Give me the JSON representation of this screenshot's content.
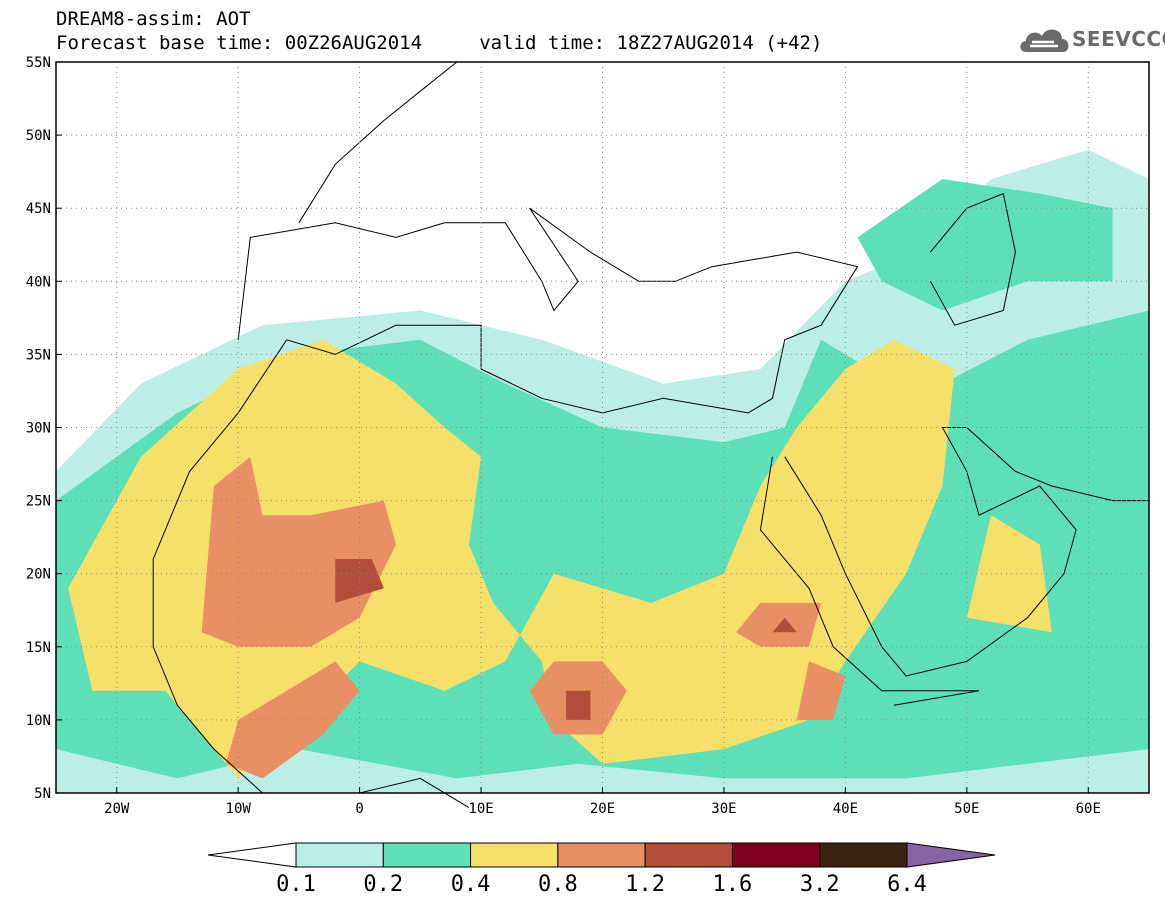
{
  "header": {
    "line1": "DREAM8-assim: AOT",
    "line2": "Forecast base time: 00Z26AUG2014     valid time: 18Z27AUG2014 (+42)",
    "logo_text": "SEEVCCC"
  },
  "map": {
    "lon_range": [
      -25,
      65
    ],
    "lat_range": [
      5,
      55
    ],
    "lat_labels": [
      "5N",
      "10N",
      "15N",
      "20N",
      "25N",
      "30N",
      "35N",
      "40N",
      "45N",
      "50N",
      "55N"
    ],
    "lon_labels": [
      "20W",
      "10W",
      "0",
      "10E",
      "20E",
      "30E",
      "40E",
      "50E",
      "60E"
    ]
  },
  "legend": {
    "colors": [
      "#ffffff",
      "#bdeee6",
      "#5de0b8",
      "#f6e06a",
      "#e89064",
      "#b24d3c",
      "#800020",
      "#3d2412",
      "#8a62a6"
    ],
    "labels": [
      "0.1",
      "0.2",
      "0.4",
      "0.8",
      "1.2",
      "1.6",
      "3.2",
      "6.4"
    ]
  }
}
